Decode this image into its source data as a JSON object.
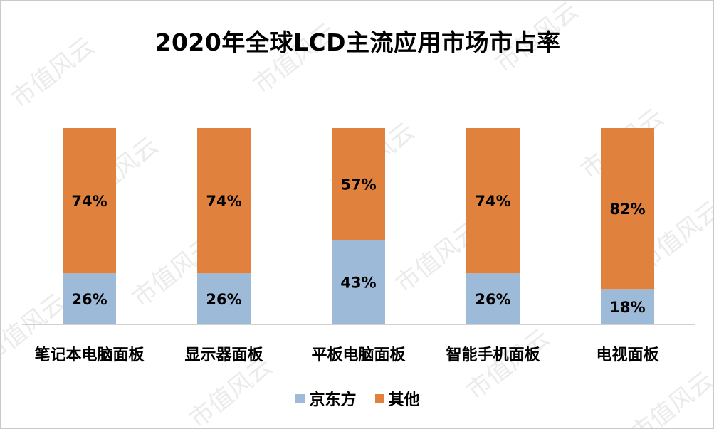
{
  "chart_data": {
    "type": "bar",
    "stacked": true,
    "title": "2020年全球LCD主流应用市场市占率",
    "categories": [
      "笔记本电脑面板",
      "显示器面板",
      "平板电脑面板",
      "智能手机面板",
      "电视面板"
    ],
    "series": [
      {
        "name": "京东方",
        "color": "#9dbad9",
        "values": [
          26,
          26,
          43,
          26,
          18
        ],
        "labels": [
          "26%",
          "26%",
          "43%",
          "26%",
          "18%"
        ]
      },
      {
        "name": "其他",
        "color": "#e0823e",
        "values": [
          74,
          74,
          57,
          74,
          82
        ],
        "labels": [
          "74%",
          "74%",
          "57%",
          "74%",
          "82%"
        ]
      }
    ],
    "ylim": [
      0,
      100
    ],
    "grid": false,
    "legend": "bottom"
  },
  "watermark": "市值风云"
}
